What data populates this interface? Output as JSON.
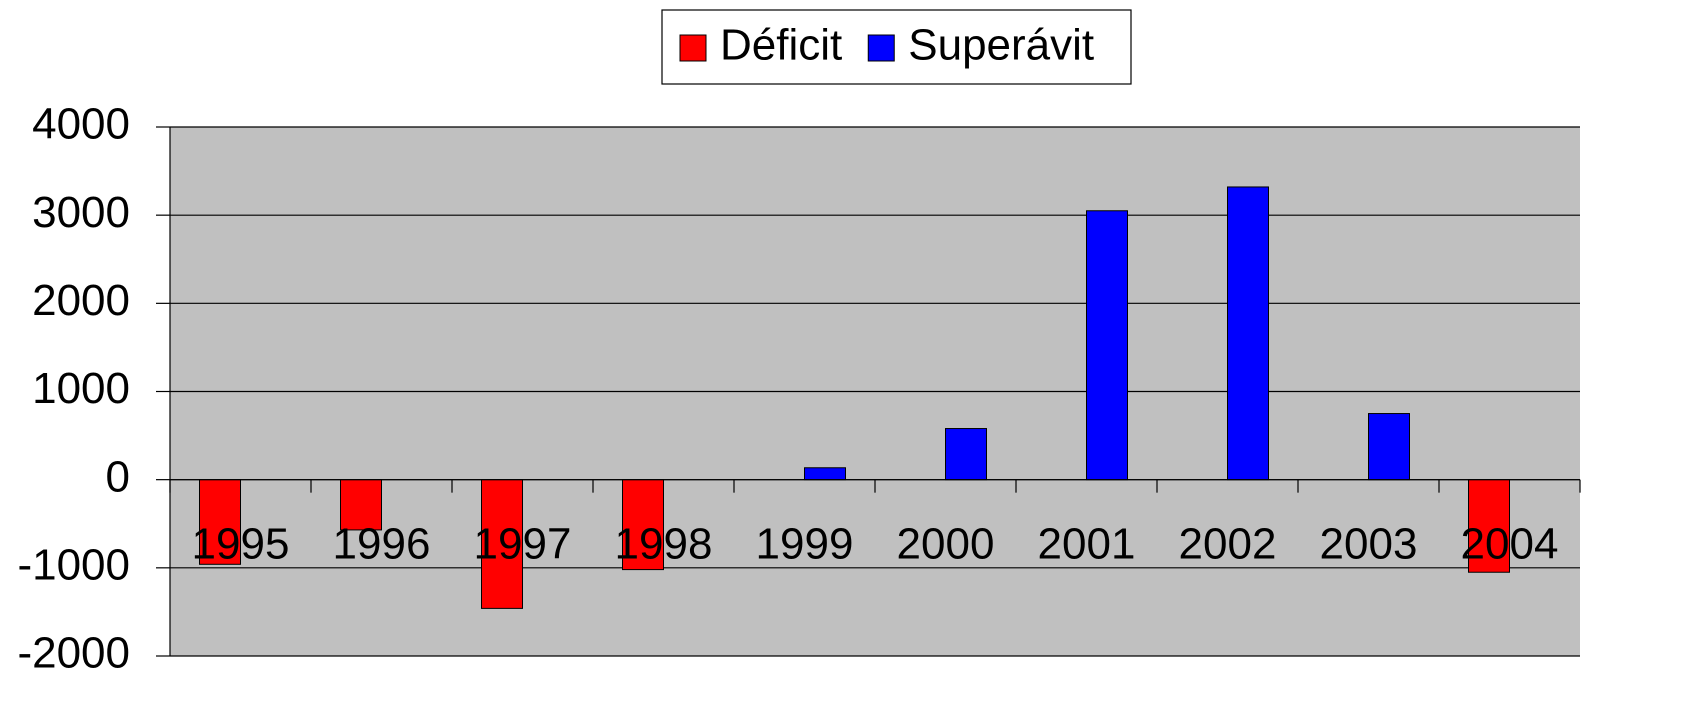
{
  "chart_data": {
    "type": "bar",
    "categories": [
      "1995",
      "1996",
      "1997",
      "1998",
      "1999",
      "2000",
      "2001",
      "2002",
      "2003",
      "2004"
    ],
    "series": [
      {
        "name": "Déficit",
        "color": "#ff0000",
        "values": [
          -960,
          -570,
          -1460,
          -1020,
          null,
          null,
          null,
          null,
          null,
          -1050
        ]
      },
      {
        "name": "Superávit",
        "color": "#0000ff",
        "values": [
          null,
          null,
          null,
          null,
          135,
          580,
          3050,
          3320,
          750,
          null
        ]
      }
    ],
    "ylim": [
      -2000,
      4000
    ],
    "yticks": [
      -2000,
      -1000,
      0,
      1000,
      2000,
      3000,
      4000
    ],
    "grid": true,
    "legend": "top",
    "plot_background": "#c0c0c0"
  }
}
